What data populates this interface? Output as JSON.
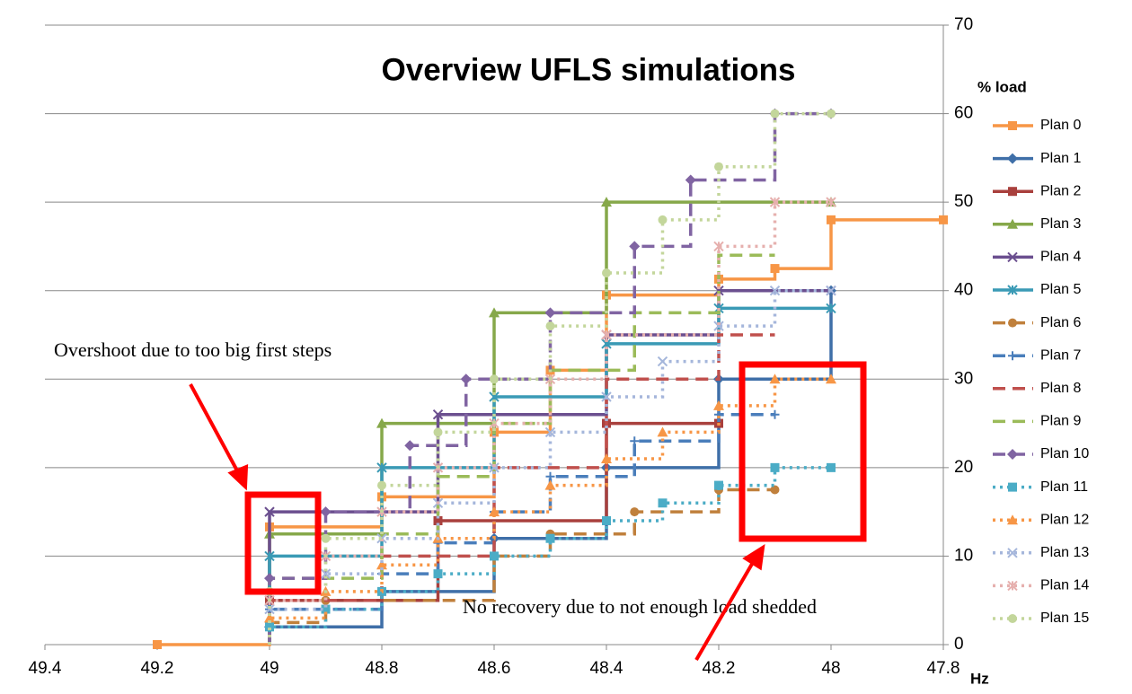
{
  "chart_data": {
    "type": "step",
    "title": "Overview UFLS simulations",
    "y_label": "% load",
    "x_label": "Hz",
    "xlim": [
      49.4,
      47.8
    ],
    "xticks": [
      49.4,
      49.2,
      49,
      48.8,
      48.6,
      48.4,
      48.2,
      48,
      47.8
    ],
    "ylim": [
      0,
      70
    ],
    "yticks": [
      0,
      10,
      20,
      30,
      40,
      50,
      60,
      70
    ],
    "grid": true,
    "legend": "right",
    "annotations": [
      "Overshoot due to too big first steps",
      "No recovery due to not enough load shedded"
    ],
    "series": [
      {
        "name": "Plan 0",
        "color": "#f79646",
        "dash": "solid",
        "marker": "square",
        "x": [
          49.2,
          49,
          48.8,
          48.6,
          48.5,
          48.4,
          48.2,
          48.1,
          48,
          47.8
        ],
        "values": [
          0,
          13.3,
          16.7,
          24,
          31,
          39.5,
          41.3,
          42.5,
          48,
          48
        ]
      },
      {
        "name": "Plan 1",
        "color": "#3f6fa8",
        "dash": "solid",
        "marker": "diamond",
        "x": [
          49,
          48.8,
          48.6,
          48.4,
          48.2,
          48
        ],
        "values": [
          2,
          6,
          12,
          20,
          30,
          40
        ]
      },
      {
        "name": "Plan 2",
        "color": "#a9403d",
        "dash": "solid",
        "marker": "square",
        "x": [
          49,
          48.7,
          48.4,
          48.2
        ],
        "values": [
          5,
          14,
          25,
          25
        ]
      },
      {
        "name": "Plan 3",
        "color": "#86a84a",
        "dash": "solid",
        "marker": "triangle",
        "x": [
          49,
          48.8,
          48.6,
          48.4,
          48
        ],
        "values": [
          12.5,
          25,
          37.5,
          50,
          50
        ]
      },
      {
        "name": "Plan 4",
        "color": "#6b4f8f",
        "dash": "solid",
        "marker": "x",
        "x": [
          49,
          48.7,
          48.4,
          48.2,
          48
        ],
        "values": [
          15,
          26,
          35,
          40,
          40
        ]
      },
      {
        "name": "Plan 5",
        "color": "#3a9ab5",
        "dash": "solid",
        "marker": "star",
        "x": [
          49,
          48.8,
          48.6,
          48.4,
          48.2,
          48
        ],
        "values": [
          10,
          20,
          28,
          34,
          38,
          38
        ]
      },
      {
        "name": "Plan 6",
        "color": "#c0803c",
        "dash": "dash",
        "marker": "circle",
        "x": [
          49,
          48.9,
          48.6,
          48.5,
          48.35,
          48.2,
          48.1
        ],
        "values": [
          2.5,
          5,
          10,
          12.5,
          15,
          17.5,
          17.5
        ]
      },
      {
        "name": "Plan 7",
        "color": "#4a7ebb",
        "dash": "dash",
        "marker": "plus",
        "x": [
          49,
          48.8,
          48.7,
          48.6,
          48.5,
          48.35,
          48.2,
          48.1
        ],
        "values": [
          4,
          8,
          11.5,
          15,
          19,
          23,
          26,
          26
        ]
      },
      {
        "name": "Plan 8",
        "color": "#c0504d",
        "dash": "dash",
        "marker": "none",
        "x": [
          49,
          48.8,
          48.6,
          48.4,
          48.2,
          48.1
        ],
        "values": [
          5,
          10,
          20,
          30,
          35,
          35
        ]
      },
      {
        "name": "Plan 9",
        "color": "#9bbb59",
        "dash": "dash",
        "marker": "none",
        "x": [
          49,
          48.8,
          48.7,
          48.6,
          48.5,
          48.35,
          48.2,
          48.1
        ],
        "values": [
          7.5,
          12.5,
          19,
          25,
          31,
          37.5,
          44,
          44
        ]
      },
      {
        "name": "Plan 10",
        "color": "#8064a2",
        "dash": "dash",
        "marker": "diamond",
        "x": [
          49,
          48.9,
          48.75,
          48.65,
          48.5,
          48.35,
          48.25,
          48.1,
          48
        ],
        "values": [
          7.5,
          15,
          22.5,
          30,
          37.5,
          45,
          52.5,
          60,
          60
        ]
      },
      {
        "name": "Plan 11",
        "color": "#4bacc6",
        "dash": "dot",
        "marker": "square",
        "x": [
          49,
          48.9,
          48.8,
          48.7,
          48.6,
          48.5,
          48.4,
          48.3,
          48.2,
          48.1,
          48
        ],
        "values": [
          2,
          4,
          6,
          8,
          10,
          12,
          14,
          16,
          18,
          20,
          20
        ]
      },
      {
        "name": "Plan 12",
        "color": "#f79646",
        "dash": "dot",
        "marker": "triangle",
        "x": [
          49,
          48.9,
          48.8,
          48.7,
          48.6,
          48.5,
          48.4,
          48.3,
          48.2,
          48.1,
          48
        ],
        "values": [
          3,
          6,
          9,
          12,
          15,
          18,
          21,
          24,
          27,
          30,
          30
        ]
      },
      {
        "name": "Plan 13",
        "color": "#a5b6db",
        "dash": "dot",
        "marker": "x",
        "x": [
          49,
          48.9,
          48.8,
          48.7,
          48.6,
          48.5,
          48.4,
          48.3,
          48.2,
          48.1,
          48
        ],
        "values": [
          4,
          8,
          12,
          16,
          20,
          24,
          28,
          32,
          36,
          40,
          40
        ]
      },
      {
        "name": "Plan 14",
        "color": "#e6b0ae",
        "dash": "dot",
        "marker": "star",
        "x": [
          49,
          48.9,
          48.8,
          48.7,
          48.6,
          48.5,
          48.4,
          48.2,
          48.1,
          48
        ],
        "values": [
          5,
          10,
          15,
          20,
          25,
          30,
          35,
          45,
          50,
          50
        ]
      },
      {
        "name": "Plan 15",
        "color": "#c3d69b",
        "dash": "dot",
        "marker": "circle",
        "x": [
          49,
          48.9,
          48.8,
          48.7,
          48.6,
          48.5,
          48.4,
          48.3,
          48.2,
          48.1,
          48
        ],
        "values": [
          6,
          12,
          18,
          24,
          30,
          36,
          42,
          48,
          54,
          60,
          60
        ]
      }
    ]
  }
}
